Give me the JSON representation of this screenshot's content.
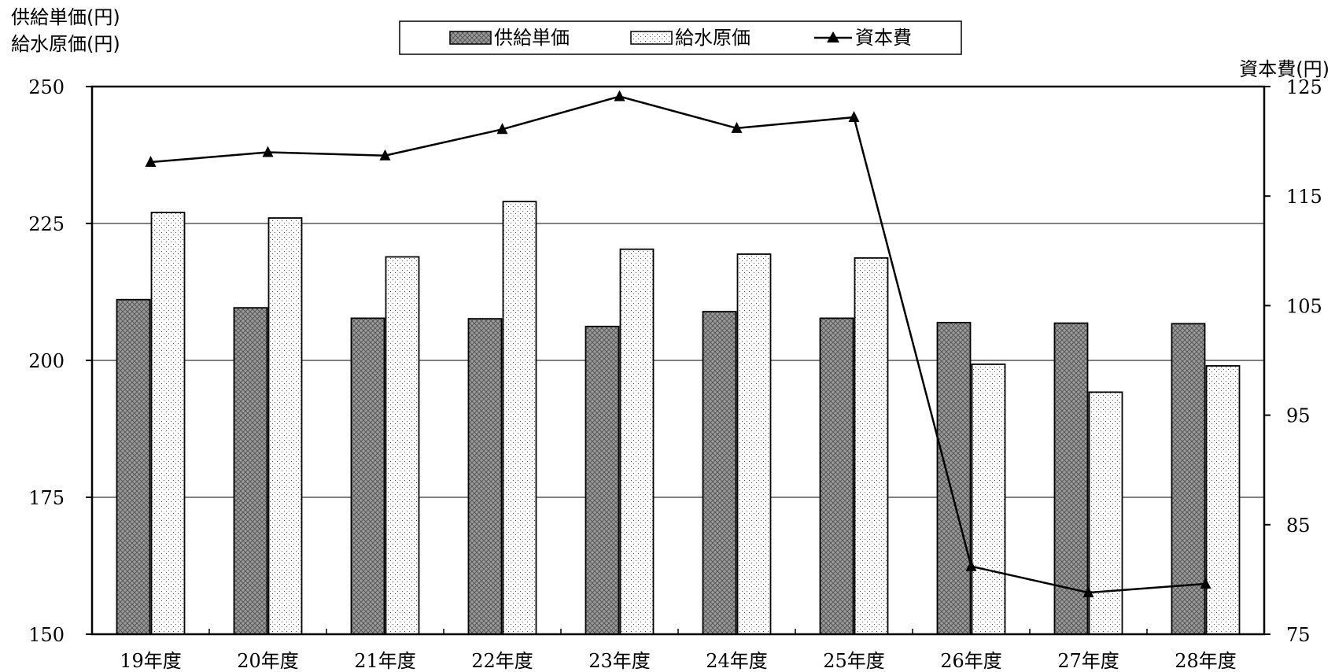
{
  "chart_data": {
    "type": "bar",
    "categories": [
      "19年度",
      "20年度",
      "21年度",
      "22年度",
      "23年度",
      "24年度",
      "25年度",
      "26年度",
      "27年度",
      "28年度"
    ],
    "series": [
      {
        "name": "供給単価",
        "kind": "bar",
        "axis": "left",
        "pattern": "crosshatch",
        "values": [
          211.1,
          209.6,
          207.7,
          207.6,
          206.2,
          208.9,
          207.7,
          206.9,
          206.8,
          206.7
        ]
      },
      {
        "name": "給水原価",
        "kind": "bar",
        "axis": "left",
        "pattern": "dots",
        "values": [
          227.0,
          226.0,
          218.9,
          229.0,
          220.3,
          219.4,
          218.7,
          199.3,
          194.2,
          199.0
        ]
      },
      {
        "name": "資本費",
        "kind": "line",
        "axis": "right",
        "marker": "triangle",
        "values": [
          118.1,
          119.0,
          118.7,
          121.1,
          124.1,
          121.2,
          122.2,
          81.2,
          78.8,
          79.6
        ]
      }
    ],
    "ylabel_left": [
      "供給単価(円)",
      "給水原価(円)"
    ],
    "ylabel_right": "資本費(円)",
    "ylim_left": [
      150,
      250
    ],
    "yticks_left": [
      150,
      175,
      200,
      225,
      250
    ],
    "ylim_right": [
      75,
      125
    ],
    "yticks_right": [
      75,
      85,
      95,
      105,
      115,
      125
    ],
    "grid": "horizontal at left ticks",
    "legend_position": "top-center",
    "colors": {
      "bar1_fill": "#8c8c8c",
      "bar2_fill": "#ffffff",
      "line": "#000000"
    }
  }
}
